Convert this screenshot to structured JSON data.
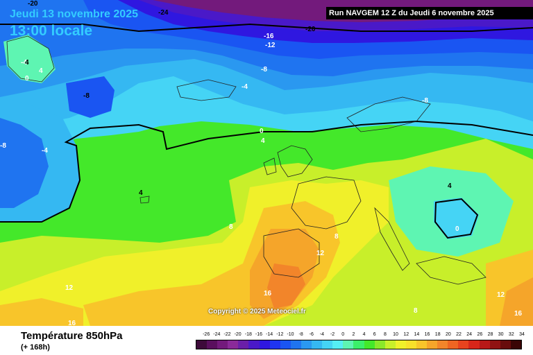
{
  "header": {
    "date": "Jeudi 13 novembre 2025",
    "time": "13:00 locale",
    "run": "Run NAVGEM 12 Z du Jeudi 6 novembre 2025"
  },
  "copyright": "Copyright © 2025 Meteociel.fr",
  "legend": {
    "title": "Température 850hPa",
    "subtitle": "(+ 168h)",
    "values": [
      "-26",
      "-24",
      "-22",
      "-20",
      "-18",
      "-16",
      "-14",
      "-12",
      "-10",
      "-8",
      "-6",
      "-4",
      "-2",
      "0",
      "2",
      "4",
      "6",
      "8",
      "10",
      "12",
      "14",
      "16",
      "18",
      "20",
      "22",
      "24",
      "26",
      "28",
      "30",
      "32",
      "34"
    ],
    "colors": [
      "#3d0a3a",
      "#5a0f5e",
      "#731a7c",
      "#8a2a99",
      "#6a1fa8",
      "#4a19c8",
      "#2f17e0",
      "#1f35f0",
      "#1a55f2",
      "#1f74f0",
      "#2a98f0",
      "#35b8f2",
      "#45d4f5",
      "#55eef5",
      "#5ef5b2",
      "#3bf06a",
      "#44e82a",
      "#8ae82a",
      "#c8ef2a",
      "#f0f02a",
      "#f8e02a",
      "#f8c52a",
      "#f5a52a",
      "#f2852a",
      "#ee6522",
      "#e8431e",
      "#d8261a",
      "#b81818",
      "#901212",
      "#680c0c",
      "#3a0606"
    ]
  },
  "map": {
    "contour_labels": [
      {
        "text": "-24",
        "color": "black"
      },
      {
        "text": "-20",
        "color": "black"
      },
      {
        "text": "-20",
        "color": "black"
      },
      {
        "text": "-16",
        "color": "white"
      },
      {
        "text": "-12",
        "color": "white"
      },
      {
        "text": "-8",
        "color": "white"
      },
      {
        "text": "-8",
        "color": "black"
      },
      {
        "text": "-8",
        "color": "white"
      },
      {
        "text": "-8",
        "color": "white"
      },
      {
        "text": "-4",
        "color": "white"
      },
      {
        "text": "-4",
        "color": "white"
      },
      {
        "text": "-4",
        "color": "white"
      },
      {
        "text": "4",
        "color": "black"
      },
      {
        "text": "4",
        "color": "white"
      },
      {
        "text": "0",
        "color": "white"
      },
      {
        "text": "0",
        "color": "white"
      },
      {
        "text": "4",
        "color": "white"
      },
      {
        "text": "4",
        "color": "black"
      },
      {
        "text": "4",
        "color": "black"
      },
      {
        "text": "8",
        "color": "white"
      },
      {
        "text": "8",
        "color": "white"
      },
      {
        "text": "8",
        "color": "white"
      },
      {
        "text": "12",
        "color": "white"
      },
      {
        "text": "12",
        "color": "white"
      },
      {
        "text": "12",
        "color": "white"
      },
      {
        "text": "16",
        "color": "white"
      },
      {
        "text": "16",
        "color": "white"
      },
      {
        "text": "16",
        "color": "white"
      },
      {
        "text": "0",
        "color": "white"
      }
    ]
  }
}
